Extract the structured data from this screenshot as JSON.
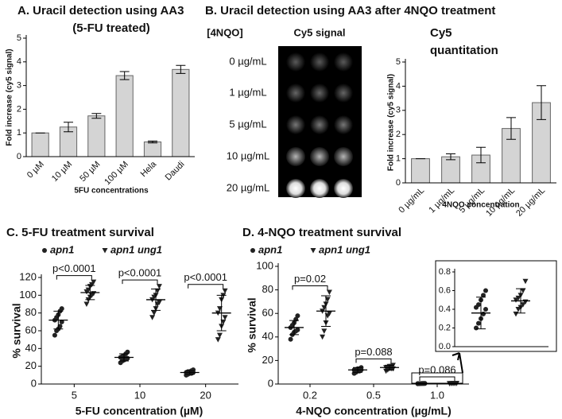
{
  "chart_data": [
    {
      "type": "bar",
      "title": [
        "A.  Uracil detection using AA3",
        "(5-FU treated)"
      ],
      "y_label": "Fold increase (cy5 signal)",
      "x_label": "5FU concentrations",
      "categories": [
        "0 µM",
        "10 µM",
        "50 µM",
        "100 µM",
        "Hela",
        "Daudi"
      ],
      "values": [
        1,
        1.25,
        1.72,
        3.42,
        0.62,
        3.68
      ],
      "errors": [
        0,
        0.2,
        0.1,
        0.17,
        0.04,
        0.17
      ],
      "color": "#d4d4d4",
      "ylim": [
        0,
        5
      ],
      "yticks": [
        0,
        1,
        2,
        3,
        4,
        5
      ]
    },
    {
      "type": "bar",
      "title": [
        "Cy5",
        "quantitation"
      ],
      "y_label": "Fold increase (cy5 signal)",
      "x_label": "4NQO concentration",
      "categories": [
        "0 µg/mL",
        "1 µg/mL",
        "5 µg/mL",
        "10 µg/mL",
        "20 µg/mL"
      ],
      "values": [
        1,
        1.08,
        1.15,
        2.25,
        3.32
      ],
      "errors": [
        0,
        0.12,
        0.32,
        0.45,
        0.7
      ],
      "color": "#d4d4d4",
      "ylim": [
        0,
        5
      ],
      "yticks": [
        0,
        1,
        2,
        3,
        4,
        5
      ]
    },
    {
      "type": "dot",
      "title": "C.  5-FU treatment survival",
      "y_label": "% survival",
      "x_label": "5-FU concentration (µM)",
      "categories": [
        "5",
        "10",
        "20"
      ],
      "series": [
        {
          "name": "apn1",
          "marker": "circle",
          "color": "#222222",
          "values": [
            [
              55,
              60,
              62,
              65,
              70,
              72,
              75,
              78,
              82,
              85
            ],
            [
              24,
              26,
              27,
              28,
              29,
              30,
              31,
              32,
              34,
              36
            ],
            [
              10,
              11,
              12,
              12,
              13,
              13,
              14,
              14,
              15,
              16
            ]
          ],
          "mean": [
            72,
            30,
            13
          ],
          "sd": [
            10,
            4,
            2
          ]
        },
        {
          "name": "apn1 ung1",
          "marker": "triangle",
          "color": "#222222",
          "values": [
            [
              90,
              95,
              98,
              100,
              102,
              104,
              106,
              110,
              112,
              115
            ],
            [
              75,
              80,
              85,
              90,
              92,
              95,
              98,
              100,
              105,
              110
            ],
            [
              50,
              55,
              65,
              70,
              75,
              80,
              85,
              95,
              100,
              105
            ]
          ],
          "mean": [
            103,
            95,
            80
          ],
          "sd": [
            8,
            12,
            20
          ]
        }
      ],
      "annotations": [
        "p<0.0001",
        "p<0.0001",
        "p<0.0001"
      ],
      "ylim": [
        0,
        120
      ],
      "yticks": [
        0,
        20,
        40,
        60,
        80,
        100,
        120
      ]
    },
    {
      "type": "dot",
      "title": "D.  4-NQO treatment survival",
      "y_label": "% survival",
      "x_label": "4-NQO concentration (µg/mL)",
      "categories": [
        "0.2",
        "0.5",
        "1.0"
      ],
      "series": [
        {
          "name": "apn1",
          "marker": "circle",
          "color": "#222222",
          "values": [
            [
              38,
              42,
              44,
              45,
              46,
              48,
              50,
              52,
              55,
              58
            ],
            [
              9,
              10,
              11,
              11,
              12,
              12,
              12,
              13,
              13,
              14
            ],
            [
              0.2,
              0.25,
              0.3,
              0.35,
              0.4,
              0.42,
              0.45,
              0.5,
              0.55,
              0.6
            ]
          ],
          "mean": [
            48,
            12,
            0.36
          ],
          "sd": [
            6,
            2,
            0.17
          ]
        },
        {
          "name": "apn1 ung1",
          "marker": "triangle",
          "color": "#222222",
          "values": [
            [
              40,
              45,
              52,
              58,
              60,
              62,
              65,
              68,
              72,
              78
            ],
            [
              11,
              12,
              13,
              13,
              13,
              14,
              14,
              15,
              15,
              16
            ],
            [
              0.35,
              0.4,
              0.42,
              0.45,
              0.48,
              0.5,
              0.52,
              0.55,
              0.6,
              0.7
            ]
          ],
          "mean": [
            62,
            14,
            0.49
          ],
          "sd": [
            13,
            2,
            0.13
          ]
        }
      ],
      "annotations": [
        "p=0.02",
        "p=0.088",
        "p=0.086"
      ],
      "ylim": [
        0,
        100
      ],
      "yticks": [
        0,
        20,
        40,
        60,
        80,
        100
      ],
      "inset": {
        "ylim": [
          0,
          0.8
        ],
        "yticks": [
          {
            "value": 0,
            "label": "0.0"
          },
          0.2,
          0.4,
          0.6,
          0.8
        ]
      }
    }
  ],
  "dot_blot": {
    "panel_title": "B.  Uracil detection using AA3 after 4NQO treatment",
    "header": "[4NQO]",
    "title": "Cy5 signal",
    "rows": [
      "0 µg/mL",
      "1 µg/mL",
      "5 µg/mL",
      "10 µg/mL",
      "20 µg/mL"
    ]
  }
}
